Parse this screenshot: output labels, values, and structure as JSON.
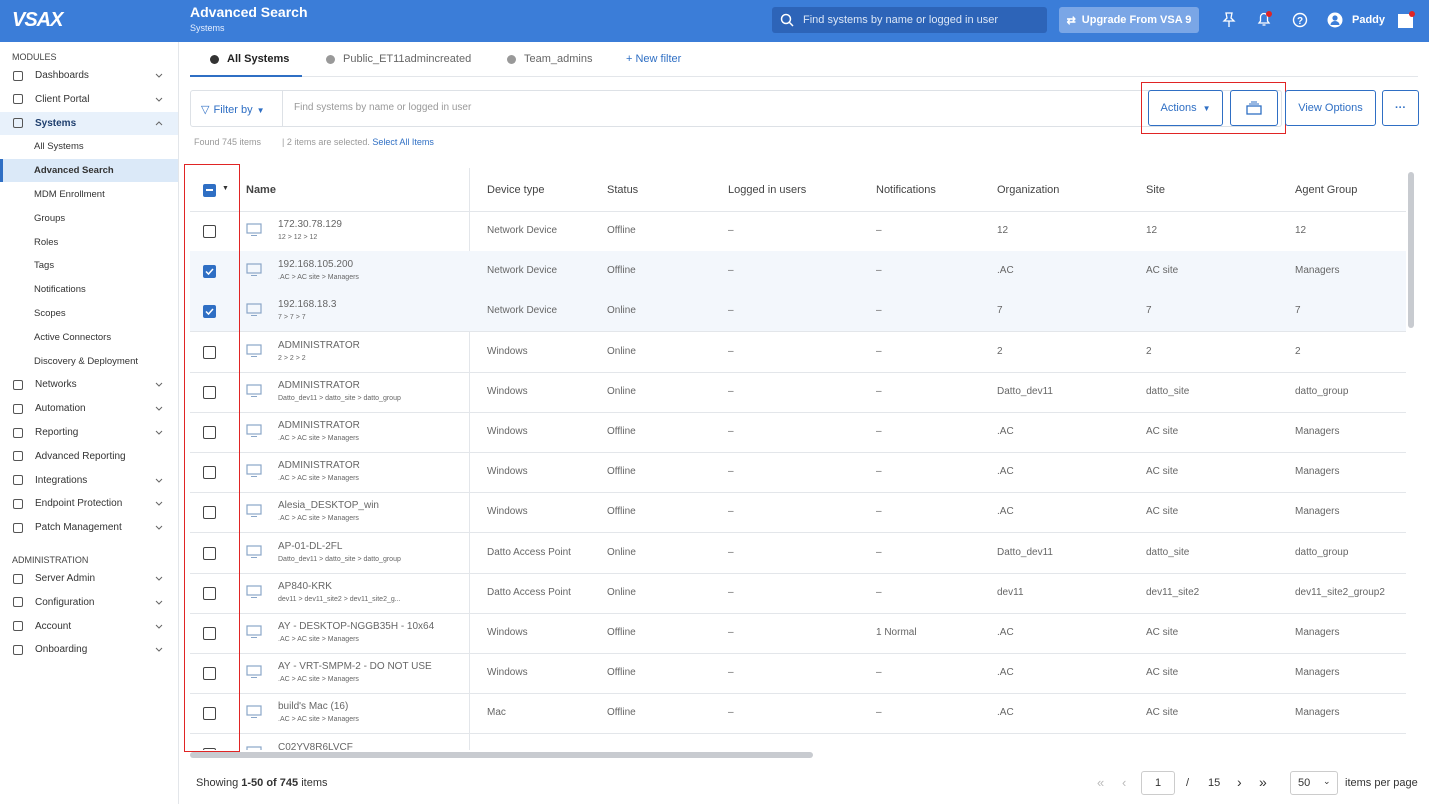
{
  "header": {
    "logo": "VSAX",
    "title": "Advanced Search",
    "subtitle": "Systems",
    "search_placeholder": "Find systems by name or logged in user",
    "upgrade": "Upgrade From VSA 9",
    "user": "Paddy"
  },
  "sidebar": {
    "sections": [
      {
        "title": "MODULES",
        "items": [
          {
            "label": "Dashboards",
            "expandable": true
          },
          {
            "label": "Client Portal",
            "expandable": true
          },
          {
            "label": "Systems",
            "expandable": true,
            "open": true,
            "children": [
              "All Systems",
              "Advanced Search",
              "MDM Enrollment",
              "Groups",
              "Roles",
              "Tags",
              "Notifications",
              "Scopes",
              "Active Connectors",
              "Discovery & Deployment"
            ],
            "current": 1
          },
          {
            "label": "Networks",
            "expandable": true
          },
          {
            "label": "Automation",
            "expandable": true
          },
          {
            "label": "Reporting",
            "expandable": true
          },
          {
            "label": "Advanced Reporting",
            "expandable": false
          },
          {
            "label": "Integrations",
            "expandable": true
          },
          {
            "label": "Endpoint Protection",
            "expandable": true
          },
          {
            "label": "Patch Management",
            "expandable": true
          }
        ]
      },
      {
        "title": "ADMINISTRATION",
        "items": [
          {
            "label": "Server Admin",
            "expandable": true
          },
          {
            "label": "Configuration",
            "expandable": true
          },
          {
            "label": "Account",
            "expandable": true
          },
          {
            "label": "Onboarding",
            "expandable": true
          }
        ]
      }
    ]
  },
  "tabs": {
    "items": [
      "All Systems",
      "Public_ET11admincreated",
      "Team_admins"
    ],
    "active": 0,
    "new_filter": "+ New filter"
  },
  "toolbar": {
    "filter_by": "Filter by",
    "placeholder": "Find systems by name or logged in user",
    "actions": "Actions",
    "view_options": "View Options"
  },
  "info": {
    "found": "Found 745 items",
    "selected": "2 items are selected.",
    "select_all": "Select All Items"
  },
  "table": {
    "columns": [
      "Name",
      "Device type",
      "Status",
      "Logged in users",
      "Notifications",
      "Organization",
      "Site",
      "Agent Group"
    ],
    "rows": [
      {
        "name": "172.30.78.129",
        "path": "12 > 12 > 12",
        "cells": [
          "Network Device",
          "Offline",
          "–",
          "–",
          "12",
          "12",
          "12"
        ],
        "checked": false
      },
      {
        "name": "192.168.105.200",
        "path": ".AC > AC site > Managers",
        "cells": [
          "Network Device",
          "Offline",
          "–",
          "–",
          ".AC",
          "AC site",
          "Managers"
        ],
        "checked": true
      },
      {
        "name": "192.168.18.3",
        "path": "7 > 7 > 7",
        "cells": [
          "Network Device",
          "Online",
          "–",
          "–",
          "7",
          "7",
          "7"
        ],
        "checked": true
      },
      {
        "name": "ADMINISTRATOR",
        "path": "2 > 2 > 2",
        "cells": [
          "Windows",
          "Online",
          "–",
          "–",
          "2",
          "2",
          "2"
        ],
        "checked": false
      },
      {
        "name": "ADMINISTRATOR",
        "path": "Datto_dev11 > datto_site > datto_group",
        "cells": [
          "Windows",
          "Online",
          "–",
          "–",
          "Datto_dev11",
          "datto_site",
          "datto_group"
        ],
        "checked": false
      },
      {
        "name": "ADMINISTRATOR",
        "path": ".AC > AC site > Managers",
        "cells": [
          "Windows",
          "Offline",
          "–",
          "–",
          ".AC",
          "AC site",
          "Managers"
        ],
        "checked": false
      },
      {
        "name": "ADMINISTRATOR",
        "path": ".AC > AC site > Managers",
        "cells": [
          "Windows",
          "Offline",
          "–",
          "–",
          ".AC",
          "AC site",
          "Managers"
        ],
        "checked": false
      },
      {
        "name": "Alesia_DESKTOP_win",
        "path": ".AC > AC site > Managers",
        "cells": [
          "Windows",
          "Offline",
          "–",
          "–",
          ".AC",
          "AC site",
          "Managers"
        ],
        "checked": false
      },
      {
        "name": "AP-01-DL-2FL",
        "path": "Datto_dev11 > datto_site > datto_group",
        "cells": [
          "Datto Access Point",
          "Online",
          "–",
          "–",
          "Datto_dev11",
          "datto_site",
          "datto_group"
        ],
        "checked": false
      },
      {
        "name": "AP840-KRK",
        "path": "dev11 > dev11_site2 > dev11_site2_g...",
        "cells": [
          "Datto Access Point",
          "Online",
          "–",
          "–",
          "dev11",
          "dev11_site2",
          "dev11_site2_group2"
        ],
        "checked": false
      },
      {
        "name": "AY - DESKTOP-NGGB35H - 10x64",
        "path": ".AC > AC site > Managers",
        "cells": [
          "Windows",
          "Offline",
          "–",
          "1 Normal",
          ".AC",
          "AC site",
          "Managers"
        ],
        "checked": false
      },
      {
        "name": "AY - VRT-SMPM-2 - DO NOT USE",
        "path": ".AC > AC site > Managers",
        "cells": [
          "Windows",
          "Offline",
          "–",
          "–",
          ".AC",
          "AC site",
          "Managers"
        ],
        "checked": false
      },
      {
        "name": "build's Mac (16)",
        "path": ".AC > AC site > Managers",
        "cells": [
          "Mac",
          "Offline",
          "–",
          "–",
          ".AC",
          "AC site",
          "Managers"
        ],
        "checked": false
      },
      {
        "name": "C02YV8R6LVCF"
      }
    ]
  },
  "footer": {
    "showing": "Showing",
    "range": "1-50 of 745",
    "items": "items",
    "page": "1",
    "separator": "/",
    "total_pages": "15",
    "per_page": "50",
    "per_page_label": "items per page"
  }
}
